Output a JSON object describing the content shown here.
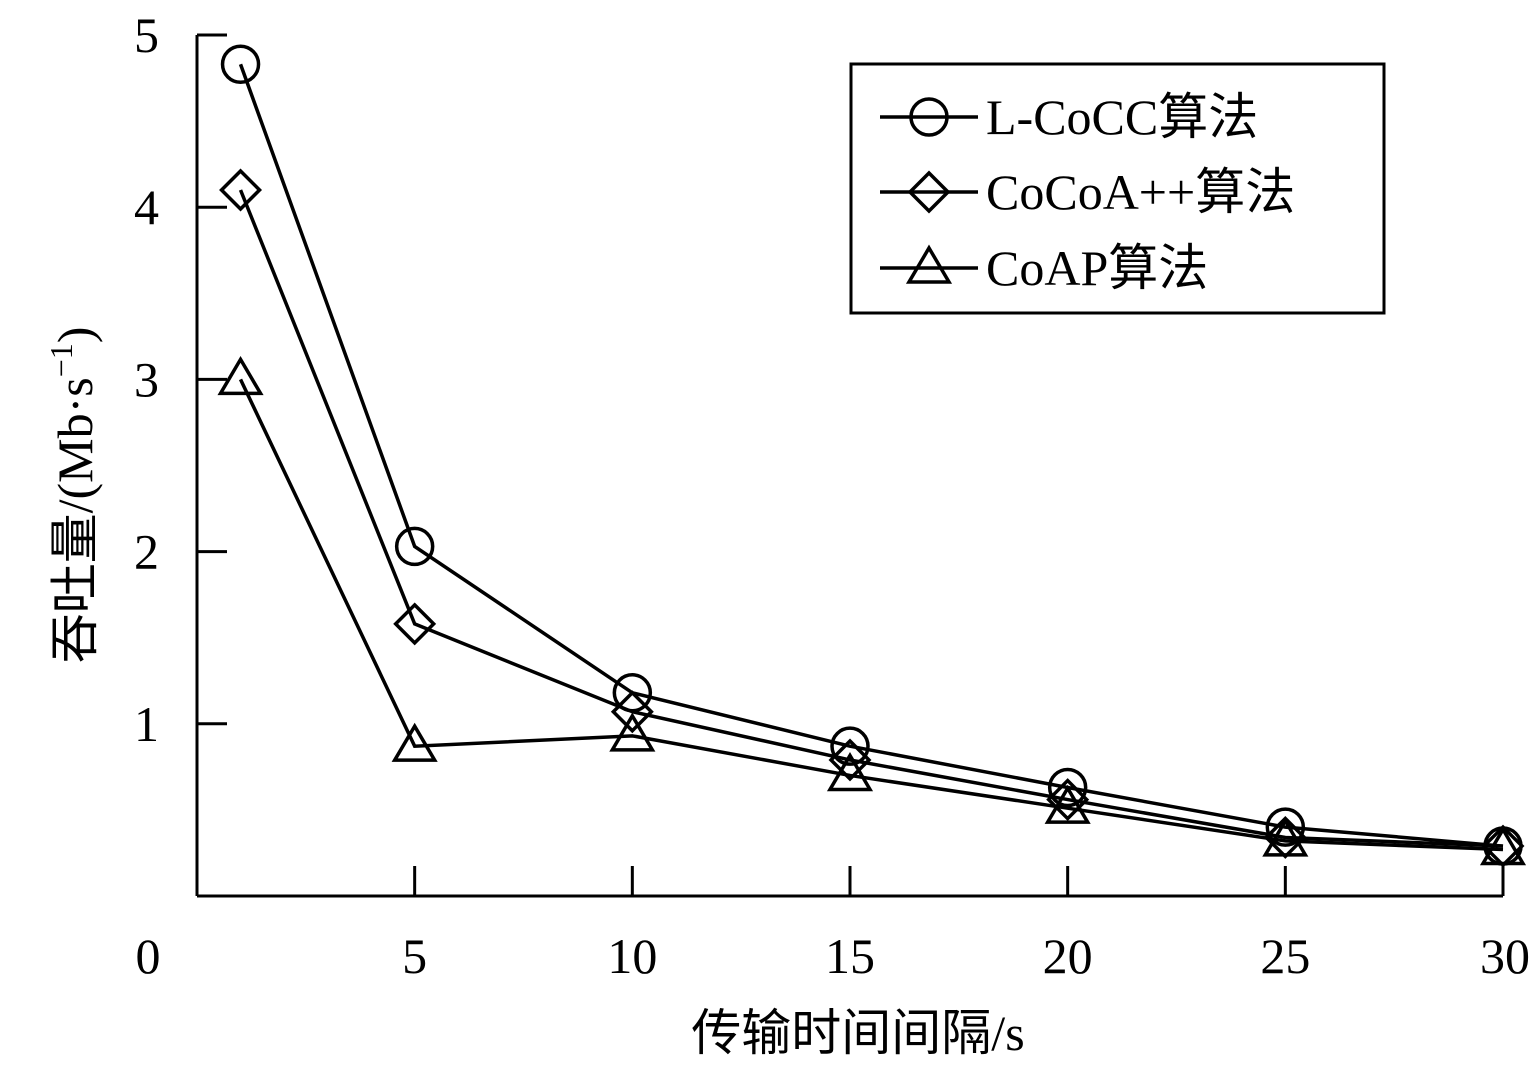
{
  "chart_data": {
    "type": "line",
    "xlabel": "传输时间间隔/s",
    "ylabel_main": "吞吐量/(Mb·s",
    "ylabel_sup": "−1",
    "ylabel_close": ")",
    "xlim": [
      0,
      30
    ],
    "ylim": [
      0,
      5
    ],
    "x_ticks": [
      5,
      10,
      15,
      20,
      25,
      30
    ],
    "x_tick_labels": [
      "0",
      "5",
      "10",
      "15",
      "20",
      "25",
      "30"
    ],
    "y_ticks": [
      1,
      2,
      3,
      4,
      5
    ],
    "y_tick_labels": [
      "1",
      "2",
      "3",
      "4",
      "5"
    ],
    "grid": false,
    "legend_position": "top-right",
    "x": [
      1,
      5,
      10,
      15,
      20,
      25,
      30
    ],
    "series": [
      {
        "name": "L-CoCC算法",
        "marker": "circle",
        "values": [
          4.83,
          2.03,
          1.18,
          0.87,
          0.63,
          0.4,
          0.29
        ]
      },
      {
        "name": "CoCoA++算法",
        "marker": "diamond",
        "values": [
          4.1,
          1.58,
          1.07,
          0.79,
          0.56,
          0.34,
          0.29
        ]
      },
      {
        "name": "CoAP算法",
        "marker": "triangle",
        "values": [
          3.0,
          0.87,
          0.93,
          0.7,
          0.51,
          0.32,
          0.27
        ]
      }
    ],
    "line_color": "#000000"
  }
}
